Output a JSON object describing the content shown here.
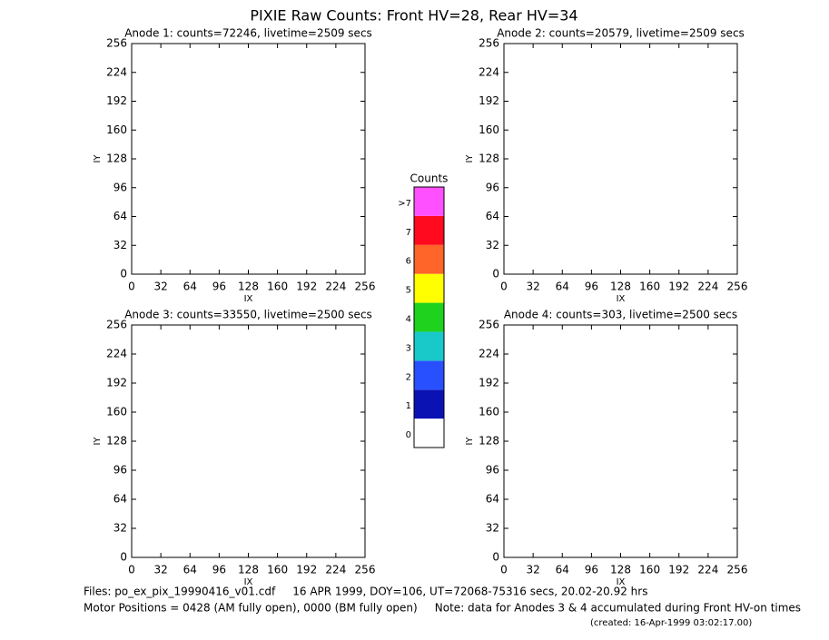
{
  "title": "PIXIE Raw Counts:  Front HV=28, Rear HV=34",
  "chart_data": [
    {
      "type": "image",
      "title": "Anode 1: counts=72246, livetime=2509 secs",
      "xlabel": "IX",
      "ylabel": "IY",
      "xlim": [
        0,
        256
      ],
      "ylim": [
        0,
        256
      ],
      "xticks": [
        0,
        32,
        64,
        96,
        128,
        160,
        192,
        224,
        256
      ],
      "yticks": [
        0,
        32,
        64,
        96,
        128,
        160,
        192,
        224,
        256
      ]
    },
    {
      "type": "image",
      "title": "Anode 2: counts=20579, livetime=2509 secs",
      "xlabel": "IX",
      "ylabel": "IY",
      "xlim": [
        0,
        256
      ],
      "ylim": [
        0,
        256
      ],
      "xticks": [
        0,
        32,
        64,
        96,
        128,
        160,
        192,
        224,
        256
      ],
      "yticks": [
        0,
        32,
        64,
        96,
        128,
        160,
        192,
        224,
        256
      ]
    },
    {
      "type": "image",
      "title": "Anode 3: counts=33550, livetime=2500 secs",
      "xlabel": "IX",
      "ylabel": "IY",
      "xlim": [
        0,
        256
      ],
      "ylim": [
        0,
        256
      ],
      "xticks": [
        0,
        32,
        64,
        96,
        128,
        160,
        192,
        224,
        256
      ],
      "yticks": [
        0,
        32,
        64,
        96,
        128,
        160,
        192,
        224,
        256
      ]
    },
    {
      "type": "image",
      "title": "Anode 4: counts=303, livetime=2500 secs",
      "xlabel": "IX",
      "ylabel": "IY",
      "xlim": [
        0,
        256
      ],
      "ylim": [
        0,
        256
      ],
      "xticks": [
        0,
        32,
        64,
        96,
        128,
        160,
        192,
        224,
        256
      ],
      "yticks": [
        0,
        32,
        64,
        96,
        128,
        160,
        192,
        224,
        256
      ]
    }
  ],
  "colorbar": {
    "title": "Counts",
    "levels": [
      {
        "label": "0",
        "color": "#ffffff"
      },
      {
        "label": "1",
        "color": "#0a12b4"
      },
      {
        "label": "2",
        "color": "#2850ff"
      },
      {
        "label": "3",
        "color": "#19c8c8"
      },
      {
        "label": "4",
        "color": "#1ed21e"
      },
      {
        "label": "5",
        "color": "#ffff00"
      },
      {
        "label": "6",
        "color": "#ff6428"
      },
      {
        "label": "7",
        "color": "#ff0a1e"
      },
      {
        "label": ">7",
        "color": "#ff50ff"
      }
    ]
  },
  "footer": {
    "lines": [
      "Files: po_ex_pix_19990416_v01.cdf     16 APR 1999, DOY=106, UT=72068-75316 secs, 20.02-20.92 hrs",
      "Motor Positions = 0428 (AM fully open), 0000 (BM fully open)     Note: data for Anodes 3 & 4 accumulated during Front HV-on times"
    ],
    "created": "(created: 16-Apr-1999 03:02:17.00)"
  }
}
